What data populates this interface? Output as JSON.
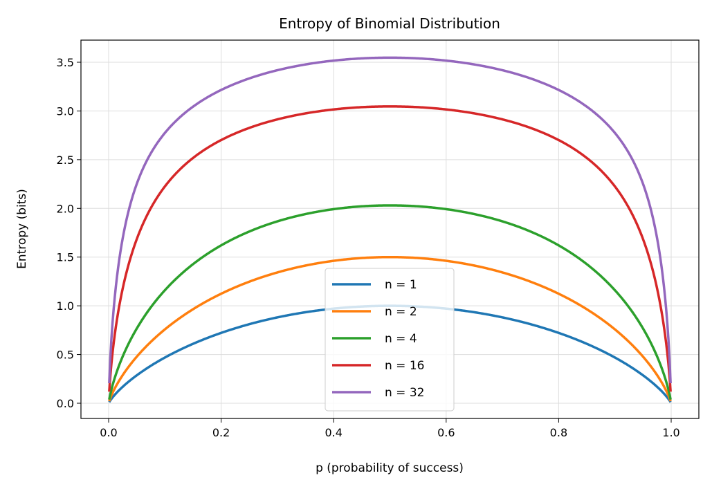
{
  "chart_data": {
    "type": "line",
    "title": "Entropy of Binomial Distribution",
    "xlabel": "p (probability of success)",
    "ylabel": "Entropy (bits)",
    "xlim": [
      -0.05,
      1.05
    ],
    "ylim": [
      -0.16,
      3.73
    ],
    "xticks": [
      0.0,
      0.2,
      0.4,
      0.6,
      0.8,
      1.0
    ],
    "xtick_labels": [
      "0.0",
      "0.2",
      "0.4",
      "0.6",
      "0.8",
      "1.0"
    ],
    "yticks": [
      0.0,
      0.5,
      1.0,
      1.5,
      2.0,
      2.5,
      3.0,
      3.5
    ],
    "ytick_labels": [
      "0.0",
      "0.5",
      "1.0",
      "1.5",
      "2.0",
      "2.5",
      "3.0",
      "3.5"
    ],
    "grid": true,
    "legend_position": "lower-center",
    "p_range": [
      0.001,
      0.999
    ],
    "series": [
      {
        "name": "n = 1",
        "n": 1,
        "color": "#1f77b4",
        "peak": 1.0
      },
      {
        "name": "n = 2",
        "n": 2,
        "color": "#ff7f0e",
        "peak": 1.5
      },
      {
        "name": "n = 4",
        "n": 4,
        "color": "#2ca02c",
        "peak": 2.03
      },
      {
        "name": "n = 16",
        "n": 16,
        "color": "#d62728",
        "peak": 3.05
      },
      {
        "name": "n = 32",
        "n": 32,
        "color": "#9467bd",
        "peak": 3.55
      }
    ]
  }
}
